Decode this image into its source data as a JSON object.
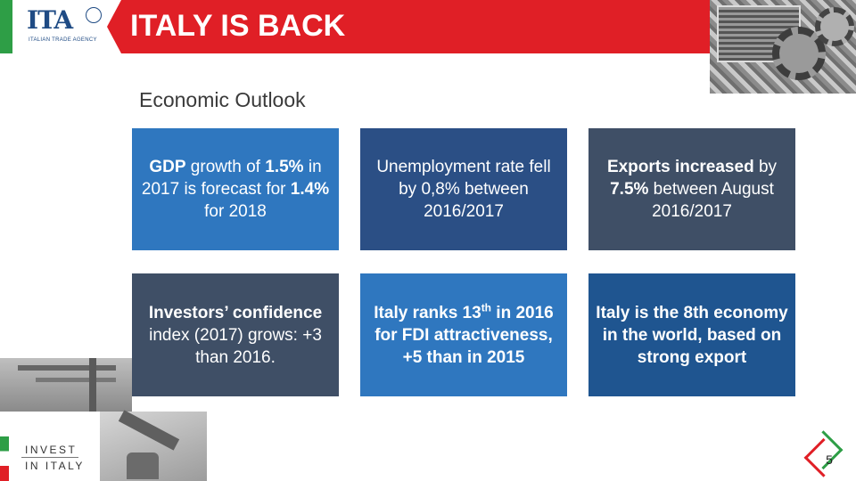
{
  "header": {
    "title": "ITALY IS BACK",
    "logo_text": "ITA",
    "logo_subtitle": "ITALIAN TRADE AGENCY",
    "accent_color": "#e01f26",
    "brand_color": "#1f4b84",
    "flag_green": "#2e9e46"
  },
  "section": {
    "title": "Economic Outlook"
  },
  "tiles": [
    {
      "parts": [
        {
          "t": "GDP",
          "b": true
        },
        {
          "t": " growth of ",
          "b": false
        },
        {
          "t": "1.5%",
          "b": true
        },
        {
          "t": " in 2017 is forecast for ",
          "b": false
        },
        {
          "t": "1.4%",
          "b": true
        },
        {
          "t": " for 2018",
          "b": false
        }
      ],
      "color": "#2f77bf"
    },
    {
      "parts": [
        {
          "t": "Unemployment rate fell by 0,8% between 2016/2017",
          "b": false
        }
      ],
      "color": "#2b4f85"
    },
    {
      "parts": [
        {
          "t": "Exports increased",
          "b": true
        },
        {
          "t": " by ",
          "b": false
        },
        {
          "t": "7.5%",
          "b": true
        },
        {
          "t": " between August 2016/2017",
          "b": false
        }
      ],
      "color": "#3f4f66"
    },
    {
      "parts": [
        {
          "t": "Investors’ confidence",
          "b": true
        },
        {
          "t": " index (2017) grows: +3 than 2016.",
          "b": false
        }
      ],
      "color": "#3f4f66"
    },
    {
      "parts": [
        {
          "t": "Italy ranks 13",
          "b": true
        },
        {
          "t": "th",
          "b": true,
          "sup": true
        },
        {
          "t": " in 2016 for FDI attractiveness, +5 than in 2015",
          "b": true
        }
      ],
      "color": "#2f77bf"
    },
    {
      "parts": [
        {
          "t": "Italy is the 8th economy in the world, based on strong export",
          "b": true
        }
      ],
      "color": "#1f5590"
    }
  ],
  "footer": {
    "invest_line1": "INVEST",
    "invest_line2": "IN ITALY",
    "page_number": "5"
  }
}
